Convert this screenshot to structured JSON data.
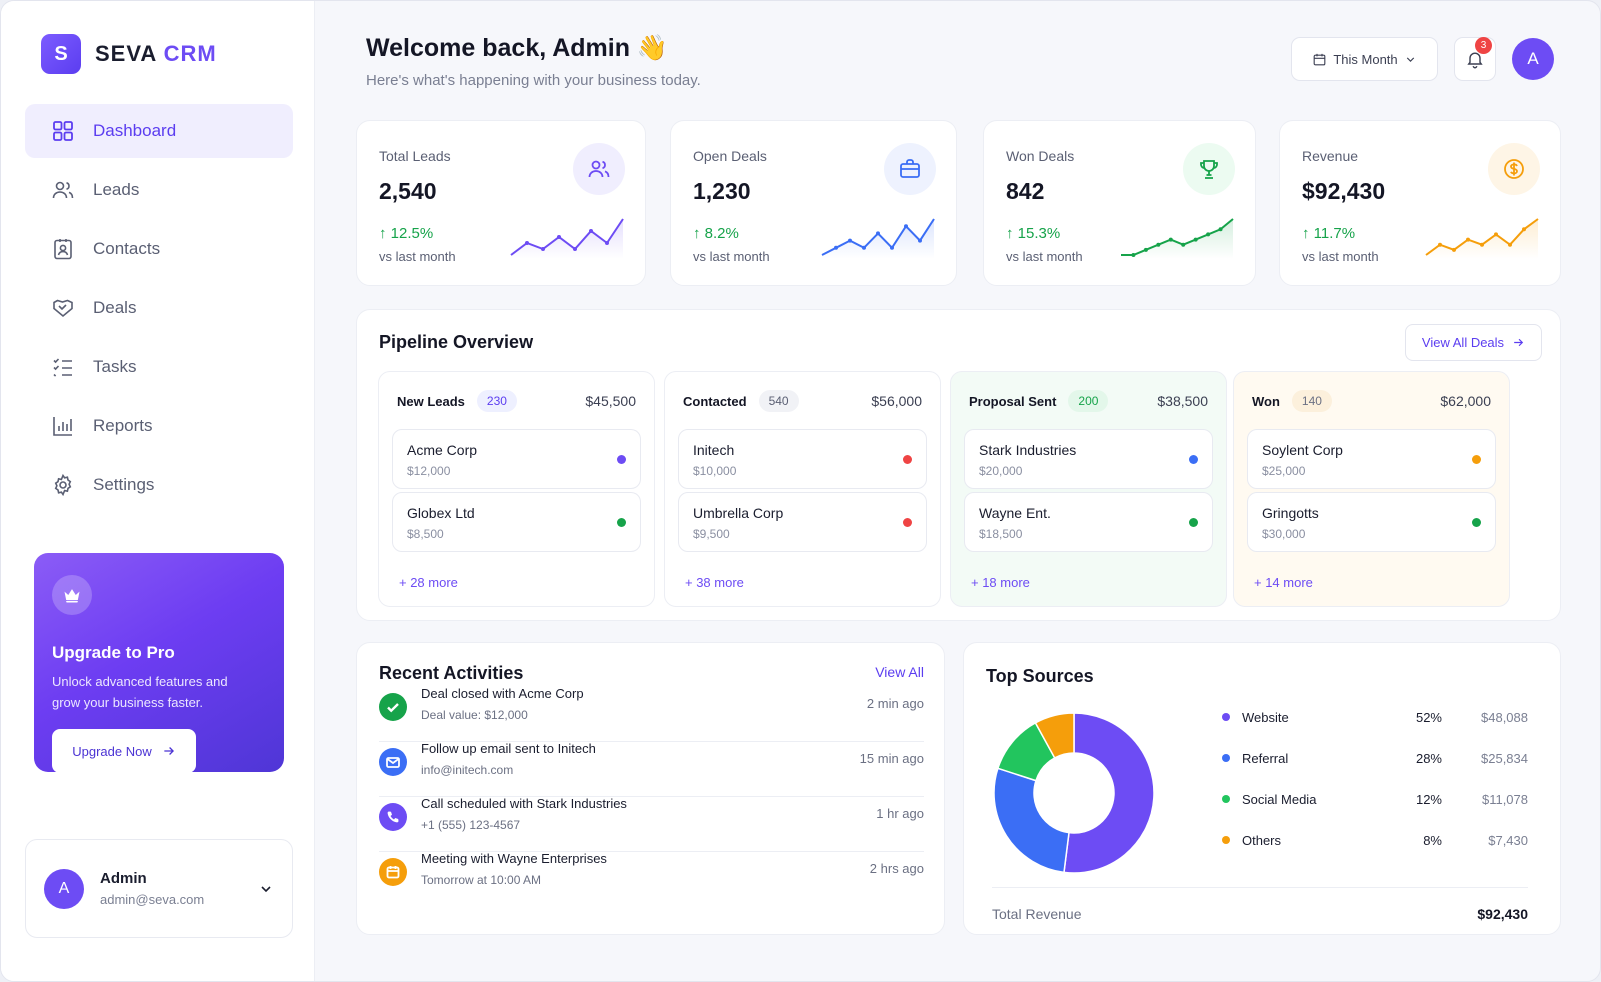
{
  "brand": {
    "logo_letter": "S",
    "name": "SEVA",
    "accent": "CRM",
    "accent_color": "#6d4cf4"
  },
  "sidebar": {
    "items": [
      {
        "label": "Dashboard",
        "icon": "grid-icon",
        "active": true
      },
      {
        "label": "Leads",
        "icon": "users-icon"
      },
      {
        "label": "Contacts",
        "icon": "contact-card-icon"
      },
      {
        "label": "Deals",
        "icon": "handshake-icon"
      },
      {
        "label": "Tasks",
        "icon": "checklist-icon"
      },
      {
        "label": "Reports",
        "icon": "bar-chart-icon"
      },
      {
        "label": "Settings",
        "icon": "gear-icon"
      }
    ]
  },
  "promo": {
    "icon": "crown-icon",
    "title": "Upgrade to Pro",
    "text": "Unlock advanced features and grow your business faster.",
    "button": "Upgrade Now"
  },
  "user": {
    "initial": "A",
    "name": "Admin",
    "email": "admin@seva.com"
  },
  "header": {
    "title": "Welcome back, Admin",
    "emoji": "👋",
    "subtitle": "Here's what's happening with your business today.",
    "period": "This Month",
    "notifications": "3",
    "avatar_initial": "A"
  },
  "kpis": [
    {
      "label": "Total Leads",
      "value": "2,540",
      "change": "↑ 12.5%",
      "vs": "vs last month",
      "icon": "users-icon",
      "color": "#6d4cf4",
      "bg": "#f0eefe",
      "trend": [
        3,
        5,
        4,
        6,
        4,
        7,
        5,
        9
      ]
    },
    {
      "label": "Open Deals",
      "value": "1,230",
      "change": "↑ 8.2%",
      "vs": "vs last month",
      "icon": "briefcase-icon",
      "color": "#3b6ef5",
      "bg": "#eef2fe",
      "trend": [
        3,
        4,
        5,
        4,
        6,
        4,
        7,
        5,
        8
      ]
    },
    {
      "label": "Won Deals",
      "value": "842",
      "change": "↑ 15.3%",
      "vs": "vs last month",
      "icon": "trophy-icon",
      "color": "#16a34a",
      "bg": "#ecfbf1",
      "trend": [
        2,
        2,
        3,
        4,
        5,
        4,
        5,
        6,
        7,
        9
      ]
    },
    {
      "label": "Revenue",
      "value": "$92,430",
      "change": "↑ 11.7%",
      "vs": "vs last month",
      "icon": "dollar-icon",
      "color": "#f59e0b",
      "bg": "#fef5e6",
      "trend": [
        2,
        4,
        3,
        5,
        4,
        6,
        4,
        7,
        9
      ]
    }
  ],
  "pipeline": {
    "title": "Pipeline Overview",
    "view_all": "View All Deals",
    "stages": [
      {
        "name": "New Leads",
        "count": "230",
        "amount": "$45,500",
        "bg": "#ffffff",
        "chip": "#eef0ff",
        "chip_text": "#5b3df0",
        "deals": [
          {
            "name": "Acme Corp",
            "value": "$12,000",
            "dot": "#6d4cf4"
          },
          {
            "name": "Globex Ltd",
            "value": "$8,500",
            "dot": "#16a34a"
          }
        ],
        "more": "+ 28 more"
      },
      {
        "name": "Contacted",
        "count": "540",
        "amount": "$56,000",
        "bg": "#ffffff",
        "chip": "#f1f2f6",
        "chip_text": "#5a5f73",
        "deals": [
          {
            "name": "Initech",
            "value": "$10,000",
            "dot": "#ef4444"
          },
          {
            "name": "Umbrella Corp",
            "value": "$9,500",
            "dot": "#ef4444"
          }
        ],
        "more": "+ 38 more"
      },
      {
        "name": "Proposal Sent",
        "count": "200",
        "amount": "$38,500",
        "bg": "#f3fbf6",
        "chip": "#e3f7ea",
        "chip_text": "#16a34a",
        "deals": [
          {
            "name": "Stark Industries",
            "value": "$20,000",
            "dot": "#3b6ef5"
          },
          {
            "name": "Wayne Ent.",
            "value": "$18,500",
            "dot": "#16a34a"
          }
        ],
        "more": "+ 18 more"
      },
      {
        "name": "Won",
        "count": "140",
        "amount": "$62,000",
        "bg": "#fffaf1",
        "chip": "#fcf0dc",
        "chip_text": "#6b7083",
        "deals": [
          {
            "name": "Soylent Corp",
            "value": "$25,000",
            "dot": "#f59e0b"
          },
          {
            "name": "Gringotts",
            "value": "$30,000",
            "dot": "#16a34a"
          }
        ],
        "more": "+ 14 more"
      }
    ]
  },
  "activities": {
    "title": "Recent Activities",
    "view_all": "View All",
    "items": [
      {
        "title": "Deal closed with Acme Corp",
        "sub": "Deal value: $12,000",
        "time": "2 min ago",
        "icon": "check-icon",
        "color": "#16a34a"
      },
      {
        "title": "Follow up email sent to Initech",
        "sub": "info@initech.com",
        "time": "15 min ago",
        "icon": "mail-icon",
        "color": "#3b6ef5"
      },
      {
        "title": "Call scheduled with Stark Industries",
        "sub": "+1 (555) 123-4567",
        "time": "1 hr ago",
        "icon": "phone-icon",
        "color": "#6d4cf4"
      },
      {
        "title": "Meeting with Wayne Enterprises",
        "sub": "Tomorrow at 10:00 AM",
        "time": "2 hrs ago",
        "icon": "calendar-icon",
        "color": "#f59e0b"
      }
    ]
  },
  "sources": {
    "title": "Top Sources",
    "items": [
      {
        "name": "Website",
        "pct": "52%",
        "amount": "$48,088",
        "value": 52,
        "color": "#6d4cf4"
      },
      {
        "name": "Referral",
        "pct": "28%",
        "amount": "$25,834",
        "value": 28,
        "color": "#3b6ef5"
      },
      {
        "name": "Social Media",
        "pct": "12%",
        "amount": "$11,078",
        "value": 12,
        "color": "#22c55e"
      },
      {
        "name": "Others",
        "pct": "8%",
        "amount": "$7,430",
        "value": 8,
        "color": "#f59e0b"
      }
    ],
    "total_label": "Total Revenue",
    "total_value": "$92,430"
  }
}
